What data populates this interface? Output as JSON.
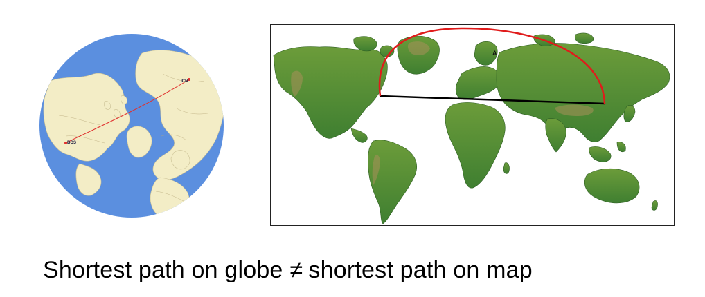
{
  "globe": {
    "origin_label": "BOS",
    "destination_label": "ICN",
    "ocean_color": "#5b8fdf",
    "land_color": "#f3edc6",
    "route_color": "#e0302e"
  },
  "map": {
    "point_label": "A",
    "great_circle_color": "#e01b1b",
    "straight_line_color": "#000000",
    "land_color": "#4f8f33"
  },
  "caption": {
    "left": "Shortest path on globe",
    "symbol": "≠",
    "right": "shortest path on map"
  }
}
